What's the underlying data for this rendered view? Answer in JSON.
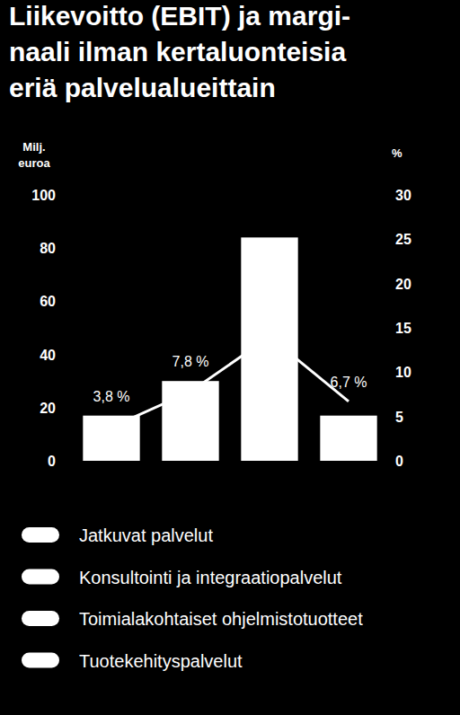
{
  "chart_data": {
    "type": "bar",
    "title": "Liikevoitto (EBIT) ja margi-\nnaali ilman kertaluonteisia\neriä palvelualueittain",
    "y_label": "Milj.\neuroa",
    "y2_label": "%",
    "categories": [
      "Jatkuvat palvelut",
      "Konsultointi ja integraatiopalvelut",
      "Toimialakohtaiset ohjelmistotuotteet",
      "Tuotekehityspalvelut"
    ],
    "series": [
      {
        "type": "bar",
        "color": "#ffffff",
        "values": [
          17,
          30,
          84,
          17
        ]
      },
      {
        "type": "line",
        "axis": "y2",
        "color": "#ffffff",
        "values": [
          3.8,
          7.8,
          14,
          6.7
        ],
        "value_labels": [
          "3,8 %",
          "7,8 %",
          null,
          "6,7 %"
        ]
      }
    ],
    "ylim": [
      0,
      100
    ],
    "yticks": [
      0,
      20,
      40,
      60,
      80,
      100
    ],
    "y2lim": [
      0,
      30
    ],
    "y2ticks": [
      0,
      5,
      10,
      15,
      20,
      25,
      30
    ],
    "grid": false,
    "legend": "bottom",
    "data_labels": true,
    "tick_labels": "y"
  }
}
